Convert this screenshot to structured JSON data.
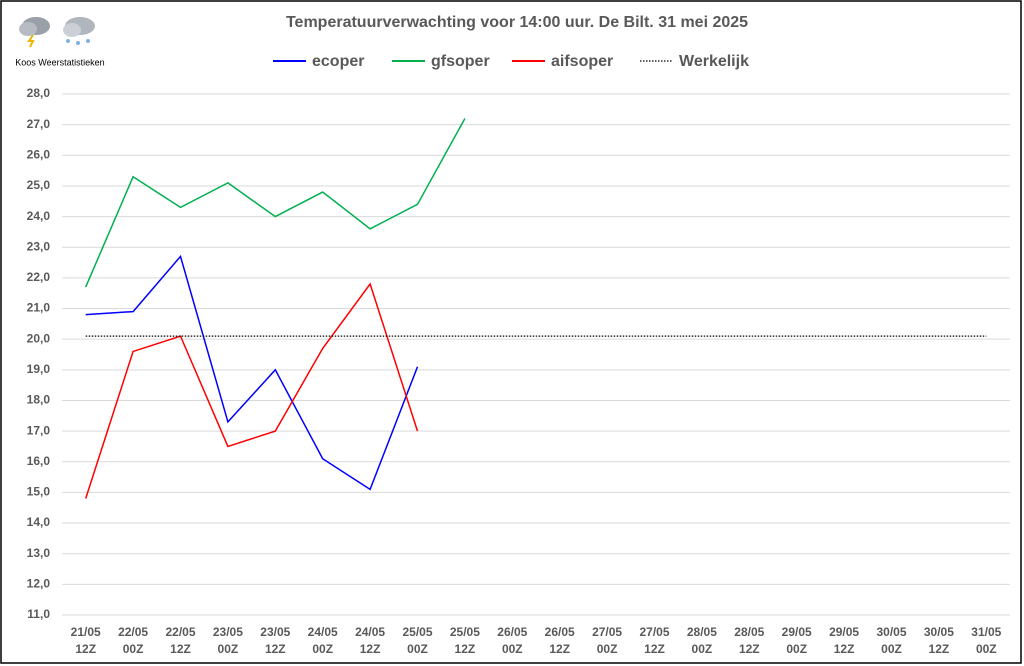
{
  "chart_data": {
    "type": "line",
    "title": "Temperatuurverwachting voor 14:00 uur. De Bilt. 31 mei 2025",
    "annotation": "Koos Weerstatistieken",
    "categories": [
      "21/05 12Z",
      "22/05 00Z",
      "22/05 12Z",
      "23/05 00Z",
      "23/05 12Z",
      "24/05 00Z",
      "24/05 12Z",
      "25/05 00Z",
      "25/05 12Z",
      "26/05 00Z",
      "26/05 12Z",
      "27/05 00Z",
      "27/05 12Z",
      "28/05 00Z",
      "28/05 12Z",
      "29/05 00Z",
      "29/05 12Z",
      "30/05 00Z",
      "30/05 12Z",
      "31/05 00Z"
    ],
    "series": [
      {
        "name": "ecoper",
        "color": "#0000ff",
        "values": [
          20.8,
          20.9,
          22.7,
          17.3,
          19.0,
          16.1,
          15.1,
          19.1,
          null,
          null,
          null,
          null,
          null,
          null,
          null,
          null,
          null,
          null,
          null,
          null
        ]
      },
      {
        "name": "gfsoper",
        "color": "#00b050",
        "values": [
          21.7,
          25.3,
          24.3,
          25.1,
          24.0,
          24.8,
          23.6,
          24.4,
          27.2,
          null,
          null,
          null,
          null,
          null,
          null,
          null,
          null,
          null,
          null,
          null
        ]
      },
      {
        "name": "aifsoper",
        "color": "#ff0000",
        "values": [
          14.8,
          19.6,
          20.1,
          16.5,
          17.0,
          19.7,
          21.8,
          17.0,
          null,
          null,
          null,
          null,
          null,
          null,
          null,
          null,
          null,
          null,
          null,
          null
        ]
      },
      {
        "name": "Werkelijk",
        "color": "#000000",
        "dash": true,
        "values": [
          20.1,
          20.1,
          20.1,
          20.1,
          20.1,
          20.1,
          20.1,
          20.1,
          20.1,
          20.1,
          20.1,
          20.1,
          20.1,
          20.1,
          20.1,
          20.1,
          20.1,
          20.1,
          20.1,
          20.1
        ]
      }
    ],
    "ylim": [
      11,
      28
    ],
    "yticks": [
      {
        "value": 11,
        "label": "11,0"
      },
      {
        "value": 12,
        "label": "12,0"
      },
      {
        "value": 13,
        "label": "13,0"
      },
      {
        "value": 14,
        "label": "14,0"
      },
      {
        "value": 15,
        "label": "15,0"
      },
      {
        "value": 16,
        "label": "16,0"
      },
      {
        "value": 17,
        "label": "17,0"
      },
      {
        "value": 18,
        "label": "18,0"
      },
      {
        "value": 19,
        "label": "19,0"
      },
      {
        "value": 20,
        "label": "20,0"
      },
      {
        "value": 21,
        "label": "21,0"
      },
      {
        "value": 22,
        "label": "22,0"
      },
      {
        "value": 23,
        "label": "23,0"
      },
      {
        "value": 24,
        "label": "24,0"
      },
      {
        "value": 25,
        "label": "25,0"
      },
      {
        "value": 26,
        "label": "26,0"
      },
      {
        "value": 27,
        "label": "27,0"
      },
      {
        "value": 28,
        "label": "28,0"
      }
    ],
    "grid": true,
    "legend": "top"
  }
}
